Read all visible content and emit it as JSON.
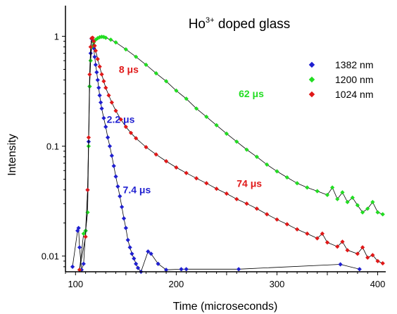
{
  "chart_data": {
    "type": "scatter",
    "title": {
      "base": "Ho",
      "sup": "3+",
      "rest": " doped glass"
    },
    "xlabel": "Time (microseconds)",
    "ylabel": "Intensity",
    "xlim": [
      90,
      408
    ],
    "ylim": [
      0.0072,
      1.9
    ],
    "yscale": "log",
    "grid": false,
    "legend_position": "top-right",
    "xticks": [
      100,
      200,
      300,
      400
    ],
    "yticks": [
      {
        "value": 1,
        "label": "1"
      },
      {
        "value": 0.1,
        "label": "0.1"
      },
      {
        "value": 0.01,
        "label": "0.01"
      }
    ],
    "series": [
      {
        "name": "1382 nm",
        "color": "#1f1fd0",
        "points": [
          [
            97,
            0.008
          ],
          [
            102,
            0.017
          ],
          [
            103,
            0.018
          ],
          [
            104,
            0.012
          ],
          [
            106,
            0.0075
          ],
          [
            108,
            0.0085
          ],
          [
            110,
            0.017
          ],
          [
            112,
            0.04
          ],
          [
            113,
            0.11
          ],
          [
            114,
            0.35
          ],
          [
            115,
            0.7
          ],
          [
            116,
            0.95
          ],
          [
            117,
            0.9
          ],
          [
            118,
            0.78
          ],
          [
            119,
            0.65
          ],
          [
            120,
            0.55
          ],
          [
            121,
            0.47
          ],
          [
            122,
            0.4
          ],
          [
            123,
            0.34
          ],
          [
            124,
            0.29
          ],
          [
            125,
            0.25
          ],
          [
            126,
            0.22
          ],
          [
            128,
            0.18
          ],
          [
            130,
            0.15
          ],
          [
            132,
            0.12
          ],
          [
            134,
            0.1
          ],
          [
            136,
            0.082
          ],
          [
            138,
            0.066
          ],
          [
            140,
            0.053
          ],
          [
            142,
            0.043
          ],
          [
            144,
            0.035
          ],
          [
            146,
            0.028
          ],
          [
            148,
            0.022
          ],
          [
            150,
            0.018
          ],
          [
            152,
            0.014
          ],
          [
            154,
            0.012
          ],
          [
            156,
            0.0105
          ],
          [
            158,
            0.0095
          ],
          [
            160,
            0.0085
          ],
          [
            162,
            0.0078
          ],
          [
            165,
            0.0072
          ],
          [
            172,
            0.011
          ],
          [
            175,
            0.0105
          ],
          [
            182,
            0.0085
          ],
          [
            190,
            0.0075
          ],
          [
            205,
            0.0076
          ],
          [
            210,
            0.0076
          ],
          [
            262,
            0.0076
          ],
          [
            363,
            0.0084
          ],
          [
            382,
            0.0076
          ]
        ]
      },
      {
        "name": "1200 nm",
        "color": "#22dd22",
        "points": [
          [
            104,
            0.0075
          ],
          [
            108,
            0.016
          ],
          [
            110,
            0.017
          ],
          [
            112,
            0.025
          ],
          [
            113,
            0.1
          ],
          [
            114,
            0.35
          ],
          [
            115,
            0.6
          ],
          [
            116,
            0.8
          ],
          [
            118,
            0.88
          ],
          [
            120,
            0.93
          ],
          [
            122,
            0.96
          ],
          [
            124,
            0.98
          ],
          [
            126,
            0.99
          ],
          [
            128,
            0.985
          ],
          [
            130,
            0.97
          ],
          [
            135,
            0.93
          ],
          [
            140,
            0.88
          ],
          [
            150,
            0.76
          ],
          [
            160,
            0.65
          ],
          [
            170,
            0.55
          ],
          [
            180,
            0.46
          ],
          [
            190,
            0.39
          ],
          [
            200,
            0.32
          ],
          [
            210,
            0.27
          ],
          [
            220,
            0.22
          ],
          [
            230,
            0.185
          ],
          [
            240,
            0.155
          ],
          [
            250,
            0.13
          ],
          [
            260,
            0.11
          ],
          [
            270,
            0.093
          ],
          [
            280,
            0.08
          ],
          [
            290,
            0.068
          ],
          [
            300,
            0.059
          ],
          [
            310,
            0.052
          ],
          [
            320,
            0.046
          ],
          [
            330,
            0.042
          ],
          [
            340,
            0.039
          ],
          [
            350,
            0.036
          ],
          [
            360,
            0.033
          ],
          [
            370,
            0.031
          ],
          [
            380,
            0.029
          ],
          [
            390,
            0.027
          ],
          [
            400,
            0.025
          ],
          [
            405,
            0.024
          ],
          [
            355,
            0.042
          ],
          [
            365,
            0.038
          ],
          [
            375,
            0.034
          ],
          [
            385,
            0.025
          ],
          [
            395,
            0.031
          ]
        ]
      },
      {
        "name": "1024 nm",
        "color": "#e01818",
        "points": [
          [
            104,
            0.0075
          ],
          [
            110,
            0.015
          ],
          [
            112,
            0.04
          ],
          [
            113,
            0.12
          ],
          [
            114,
            0.45
          ],
          [
            115,
            0.8
          ],
          [
            116,
            0.96
          ],
          [
            117,
            0.97
          ],
          [
            118,
            0.9
          ],
          [
            119,
            0.82
          ],
          [
            120,
            0.74
          ],
          [
            122,
            0.62
          ],
          [
            124,
            0.53
          ],
          [
            126,
            0.45
          ],
          [
            128,
            0.39
          ],
          [
            130,
            0.34
          ],
          [
            133,
            0.29
          ],
          [
            136,
            0.25
          ],
          [
            140,
            0.21
          ],
          [
            145,
            0.175
          ],
          [
            150,
            0.15
          ],
          [
            155,
            0.132
          ],
          [
            160,
            0.118
          ],
          [
            170,
            0.098
          ],
          [
            180,
            0.084
          ],
          [
            190,
            0.073
          ],
          [
            200,
            0.064
          ],
          [
            210,
            0.057
          ],
          [
            220,
            0.051
          ],
          [
            230,
            0.046
          ],
          [
            240,
            0.041
          ],
          [
            250,
            0.037
          ],
          [
            260,
            0.033
          ],
          [
            270,
            0.03
          ],
          [
            280,
            0.027
          ],
          [
            290,
            0.024
          ],
          [
            300,
            0.0215
          ],
          [
            310,
            0.0195
          ],
          [
            320,
            0.0175
          ],
          [
            330,
            0.016
          ],
          [
            340,
            0.0145
          ],
          [
            350,
            0.0133
          ],
          [
            360,
            0.0122
          ],
          [
            370,
            0.0113
          ],
          [
            380,
            0.0105
          ],
          [
            390,
            0.0097
          ],
          [
            400,
            0.009
          ],
          [
            405,
            0.0086
          ],
          [
            345,
            0.016
          ],
          [
            365,
            0.0135
          ],
          [
            385,
            0.012
          ],
          [
            395,
            0.0102
          ]
        ]
      }
    ],
    "annotations": [
      {
        "text": "8 μs",
        "series": "1024 nm",
        "x": 143,
        "y": 0.5
      },
      {
        "text": "62 μs",
        "series": "1200 nm",
        "x": 262,
        "y": 0.3
      },
      {
        "text": "2.2 μs",
        "series": "1382 nm",
        "x": 131,
        "y": 0.175
      },
      {
        "text": "74 μs",
        "series": "1024 nm",
        "x": 260,
        "y": 0.046
      },
      {
        "text": "7.4 μs",
        "series": "1382 nm",
        "x": 147,
        "y": 0.04
      }
    ]
  }
}
